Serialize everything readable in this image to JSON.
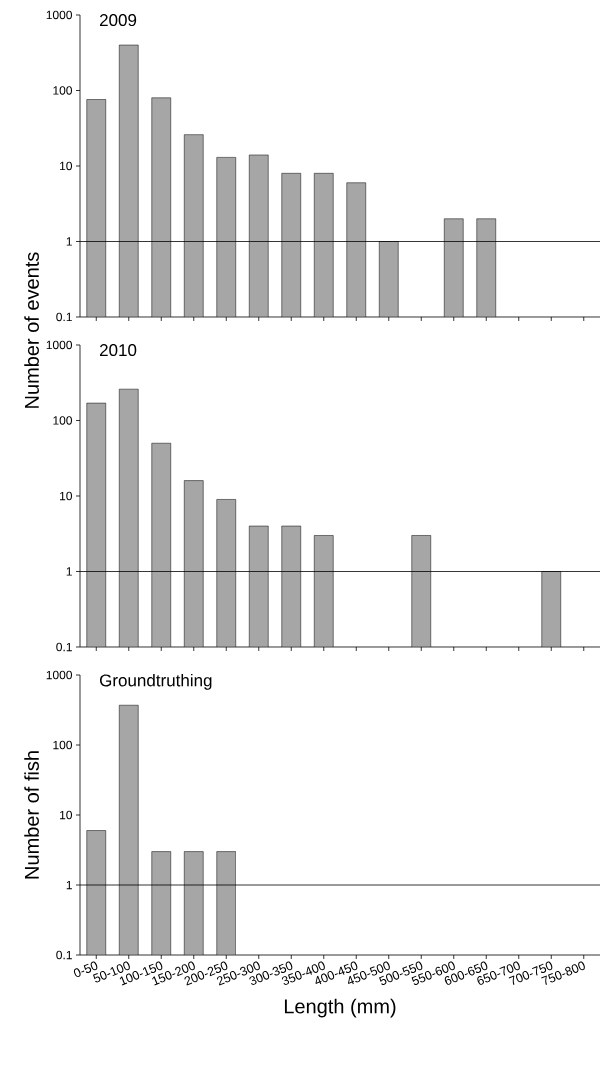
{
  "chart_data": [
    {
      "type": "bar",
      "title": "2009",
      "ylabel": "Number of events",
      "categories": [
        null,
        null,
        null,
        null,
        null,
        null,
        null,
        null,
        null,
        null,
        null,
        null,
        null,
        null,
        null,
        null
      ],
      "values": [
        76,
        400,
        80,
        26,
        13,
        14,
        8,
        8,
        6,
        1,
        null,
        2,
        2,
        null,
        null,
        null
      ],
      "color": "#a6a6a6",
      "log": true,
      "ylim": [
        0.1,
        1000
      ],
      "yticks": [
        0.1,
        1,
        10,
        100,
        1000
      ],
      "tick_labels": "y",
      "ref_lines": [
        {
          "axis": "y",
          "value": 1,
          "color": "#000000"
        }
      ]
    },
    {
      "type": "bar",
      "title": "2010",
      "categories": [
        null,
        null,
        null,
        null,
        null,
        null,
        null,
        null,
        null,
        null,
        null,
        null,
        null,
        null,
        null,
        null
      ],
      "values": [
        170,
        260,
        50,
        16,
        9,
        4,
        4,
        3,
        null,
        null,
        3,
        null,
        null,
        null,
        1,
        null
      ],
      "color": "#a6a6a6",
      "log": true,
      "ylim": [
        0.1,
        1000
      ],
      "yticks": [
        0.1,
        1,
        10,
        100,
        1000
      ],
      "tick_labels": "y",
      "ref_lines": [
        {
          "axis": "y",
          "value": 1,
          "color": "#000000"
        }
      ]
    },
    {
      "type": "bar",
      "title": "Groundtruthing",
      "xlabel": "Length (mm)",
      "ylabel": "Number of fish",
      "categories": [
        "0-50",
        "50-100",
        "100-150",
        "150-200",
        "200-250",
        "250-300",
        "300-350",
        "350-400",
        "400-450",
        "450-500",
        "500-550",
        "550-600",
        "600-650",
        "650-700",
        "700-750",
        "750-800"
      ],
      "values": [
        6,
        370,
        3,
        3,
        3,
        null,
        null,
        null,
        null,
        null,
        null,
        null,
        null,
        null,
        null,
        null
      ],
      "color": "#a6a6a6",
      "log": true,
      "ylim": [
        0.1,
        1000
      ],
      "yticks": [
        0.1,
        1,
        10,
        100,
        1000
      ],
      "ref_lines": [
        {
          "axis": "y",
          "value": 1,
          "color": "#000000"
        }
      ]
    }
  ]
}
